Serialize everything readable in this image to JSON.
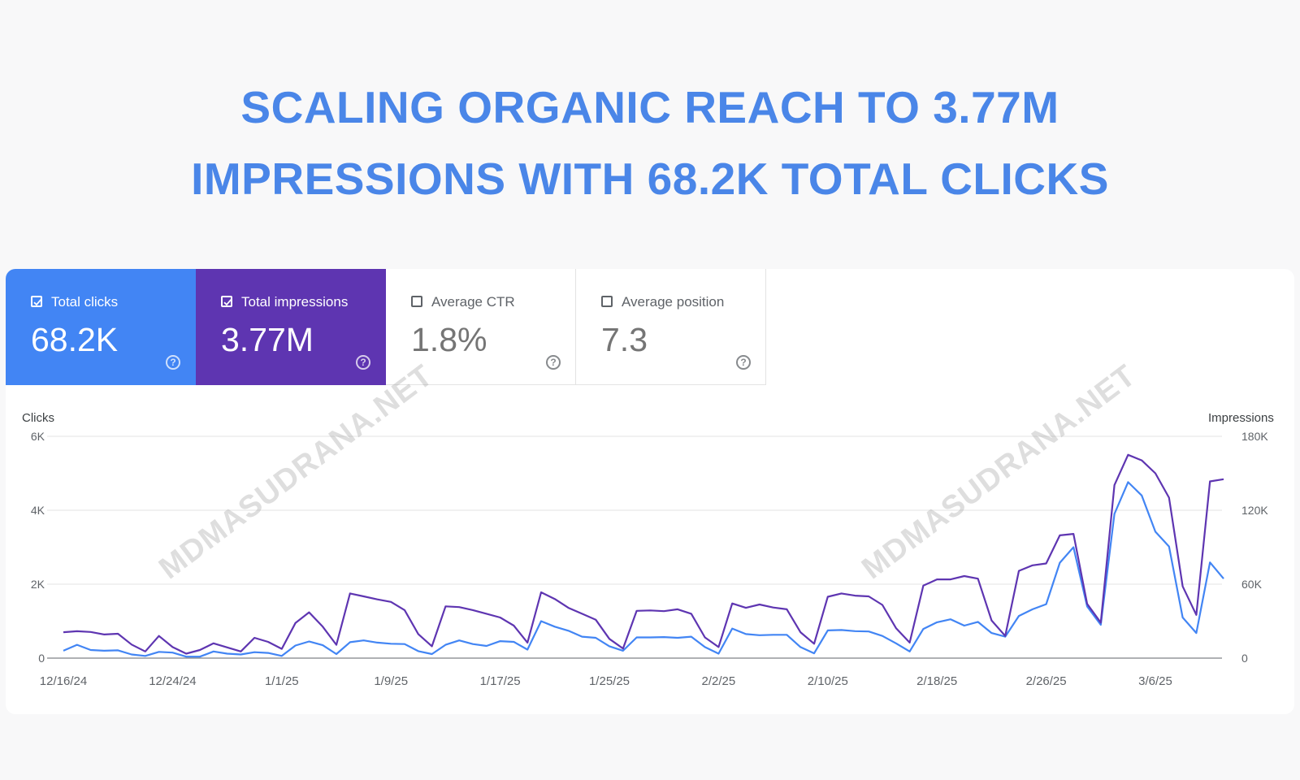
{
  "headline": {
    "line1": "SCALING ORGANIC REACH TO 3.77M",
    "line2": "IMPRESSIONS WITH 68.2K TOTAL CLICKS"
  },
  "metrics": [
    {
      "label": "Total clicks",
      "value": "68.2K",
      "checked": true,
      "color": "#4285f4"
    },
    {
      "label": "Total impressions",
      "value": "3.77M",
      "checked": true,
      "color": "#5e35b1"
    },
    {
      "label": "Average CTR",
      "value": "1.8%",
      "checked": false
    },
    {
      "label": "Average position",
      "value": "7.3",
      "checked": false
    }
  ],
  "watermark": "MDMASUDRANA.NET",
  "chart_data": {
    "type": "line",
    "ylabel_left": "Clicks",
    "ylabel_right": "Impressions",
    "y_left_ticks": [
      "0",
      "2K",
      "4K",
      "6K"
    ],
    "y_right_ticks": [
      "0",
      "60K",
      "120K",
      "180K"
    ],
    "ylim_left": [
      0,
      6000
    ],
    "ylim_right": [
      0,
      180000
    ],
    "x_tick_labels": [
      "12/16/24",
      "12/24/24",
      "1/1/25",
      "1/9/25",
      "1/17/25",
      "1/25/25",
      "2/2/25",
      "2/10/25",
      "2/18/25",
      "2/26/25",
      "3/6/25"
    ],
    "x_tick_every": 8,
    "grid": true,
    "series": [
      {
        "name": "Total clicks",
        "axis": "left",
        "color": "#4285f4",
        "values": [
          200,
          360,
          220,
          200,
          210,
          100,
          60,
          170,
          150,
          40,
          40,
          180,
          120,
          100,
          160,
          140,
          60,
          340,
          450,
          350,
          110,
          430,
          480,
          420,
          390,
          380,
          190,
          110,
          360,
          480,
          380,
          330,
          460,
          440,
          230,
          1000,
          850,
          740,
          580,
          550,
          320,
          200,
          560,
          560,
          570,
          550,
          580,
          300,
          120,
          800,
          650,
          620,
          630,
          630,
          300,
          130,
          750,
          760,
          730,
          720,
          600,
          400,
          180,
          790,
          970,
          1050,
          880,
          980,
          680,
          580,
          1140,
          1320,
          1460,
          2580,
          3000,
          1400,
          900,
          3900,
          4760,
          4400,
          3420,
          3020,
          1100,
          680,
          2590,
          2150
        ]
      },
      {
        "name": "Total impressions",
        "axis": "right",
        "color": "#5e35b1",
        "values": [
          21000,
          21800,
          21200,
          19200,
          19800,
          11000,
          5400,
          18000,
          9000,
          3600,
          6600,
          12000,
          8700,
          5400,
          16500,
          13200,
          7500,
          28500,
          37200,
          25500,
          10800,
          52500,
          50100,
          47700,
          45600,
          39000,
          19500,
          9600,
          42000,
          41400,
          39000,
          36000,
          33000,
          26400,
          12600,
          53400,
          48000,
          40800,
          36000,
          31200,
          15600,
          7800,
          38400,
          38700,
          38100,
          39600,
          36000,
          16800,
          9000,
          44400,
          40800,
          43500,
          41100,
          39600,
          21000,
          11700,
          49800,
          52500,
          50700,
          50100,
          43200,
          24300,
          12600,
          58800,
          63900,
          63900,
          66600,
          64500,
          30600,
          18000,
          70800,
          75300,
          76800,
          99600,
          100800,
          44100,
          28800,
          140400,
          165000,
          160500,
          150000,
          130200,
          58200,
          35100,
          143400,
          145200
        ]
      }
    ]
  }
}
